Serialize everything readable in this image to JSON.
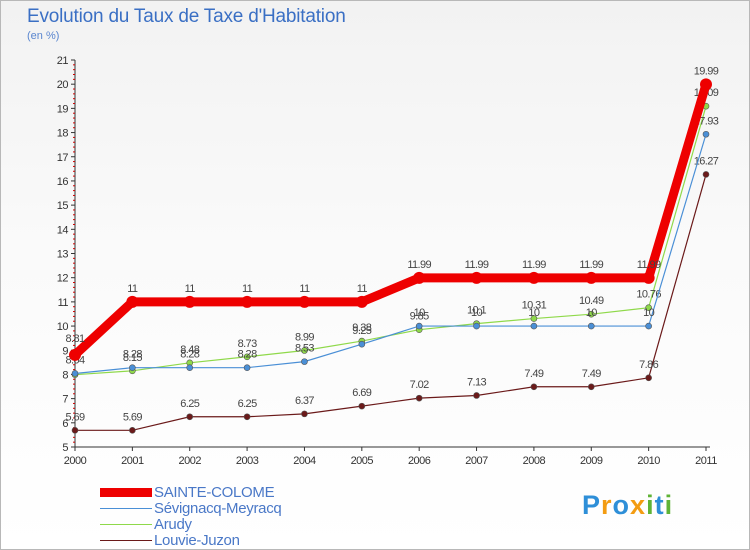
{
  "title": "Evolution du Taux de Taxe d'Habitation",
  "subtitle": "(en %)",
  "chart_data": {
    "type": "line",
    "title": "Evolution du Taux de Taxe d'Habitation",
    "subtitle": "(en %)",
    "x": [
      "2000",
      "2001",
      "2002",
      "2003",
      "2004",
      "2005",
      "2006",
      "2007",
      "2008",
      "2009",
      "2010",
      "2011"
    ],
    "ylim": [
      5,
      21
    ],
    "yticks": [
      "5",
      "6",
      "7",
      "8",
      "9",
      "10",
      "11",
      "12",
      "13",
      "14",
      "15",
      "16",
      "17",
      "18",
      "19",
      "20",
      "21"
    ],
    "grid": false,
    "legend_position": "bottom-left",
    "series": [
      {
        "name": "SAINTE-COLOME",
        "color": "#ee0000",
        "values": [
          8.81,
          11,
          11,
          11,
          11,
          11,
          11.99,
          11.99,
          11.99,
          11.99,
          11.99,
          19.99
        ],
        "labels": [
          "8.81",
          "11",
          "11",
          "11",
          "11",
          "11",
          "11.99",
          "11.99",
          "11.99",
          "11.99",
          "11.99",
          "19.99"
        ]
      },
      {
        "name": "Sévignacq-Meyracq",
        "color": "#4a8fd6",
        "values": [
          8.04,
          8.28,
          8.28,
          8.28,
          8.53,
          9.25,
          10,
          10,
          10,
          10,
          10,
          17.93
        ],
        "labels": [
          "8.04",
          "8.28",
          "8.28",
          "8.28",
          "8.53",
          "9.25",
          "10",
          "10",
          "10",
          "10",
          "10",
          "17.93"
        ]
      },
      {
        "name": "Arudy",
        "color": "#8fd94a",
        "values": [
          7.99,
          8.15,
          8.48,
          8.73,
          8.99,
          9.38,
          9.85,
          10.1,
          10.31,
          10.49,
          10.76,
          19.09
        ],
        "labels": [
          "",
          "8.15",
          "8.48",
          "8.73",
          "8.99",
          "9.38",
          "9.85",
          "10.1",
          "10.31",
          "10.49",
          "10.76",
          "19.09"
        ]
      },
      {
        "name": "Louvie-Juzon",
        "color": "#6b1a1a",
        "values": [
          5.69,
          5.69,
          6.25,
          6.25,
          6.37,
          6.69,
          7.02,
          7.13,
          7.49,
          7.49,
          7.86,
          16.27
        ],
        "labels": [
          "5.69",
          "5.69",
          "6.25",
          "6.25",
          "6.37",
          "6.69",
          "7.02",
          "7.13",
          "7.49",
          "7.49",
          "7.86",
          "16.27"
        ]
      }
    ]
  },
  "legend": [
    "SAINTE-COLOME",
    "Sévignacq-Meyracq",
    "Arudy",
    "Louvie-Juzon"
  ],
  "logo": {
    "text": "Proxiti",
    "letters": [
      "P",
      "r",
      "o",
      "x",
      "i",
      "t",
      "i"
    ],
    "colors": [
      "#2e8fd8",
      "#f39c12",
      "#2e8fd8",
      "#f39c12",
      "#5fb336",
      "#2e8fd8",
      "#5fb336"
    ]
  }
}
